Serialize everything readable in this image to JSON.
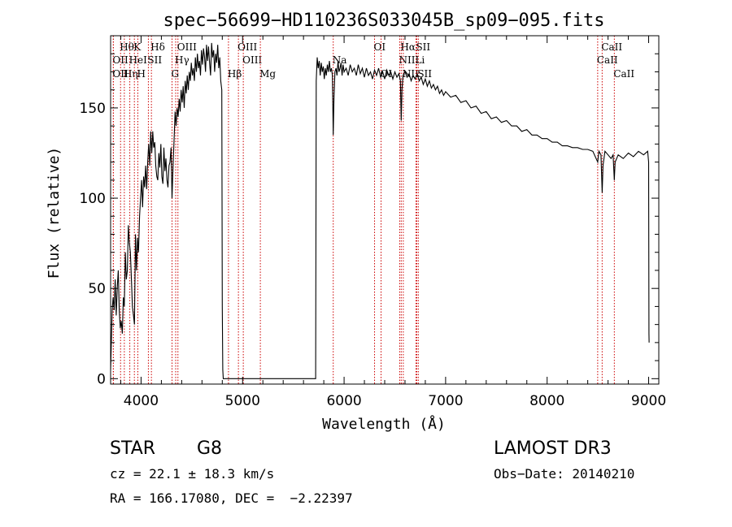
{
  "chart_data": {
    "type": "line",
    "title": "spec−56699−HD110236S033045B_sp09−095.fits",
    "xlabel": "Wavelength (Å)",
    "ylabel": "Flux (relative)",
    "xlim": [
      3700,
      9100
    ],
    "ylim": [
      -3,
      190
    ],
    "xticks": [
      4000,
      5000,
      6000,
      7000,
      8000,
      9000
    ],
    "yticks": [
      0,
      50,
      100,
      150
    ],
    "grid": false,
    "series": [
      {
        "points": [
          [
            3700,
            5
          ],
          [
            3705,
            15
          ],
          [
            3715,
            38
          ],
          [
            3725,
            45
          ],
          [
            3735,
            38
          ],
          [
            3745,
            55
          ],
          [
            3755,
            35
          ],
          [
            3765,
            50
          ],
          [
            3775,
            60
          ],
          [
            3785,
            38
          ],
          [
            3795,
            28
          ],
          [
            3805,
            32
          ],
          [
            3815,
            25
          ],
          [
            3825,
            45
          ],
          [
            3835,
            40
          ],
          [
            3845,
            70
          ],
          [
            3855,
            55
          ],
          [
            3865,
            60
          ],
          [
            3875,
            85
          ],
          [
            3885,
            75
          ],
          [
            3895,
            70
          ],
          [
            3905,
            55
          ],
          [
            3915,
            40
          ],
          [
            3925,
            35
          ],
          [
            3935,
            30
          ],
          [
            3945,
            80
          ],
          [
            3955,
            60
          ],
          [
            3965,
            78
          ],
          [
            3975,
            70
          ],
          [
            3985,
            90
          ],
          [
            3995,
            100
          ],
          [
            4005,
            110
          ],
          [
            4015,
            95
          ],
          [
            4025,
            112
          ],
          [
            4035,
            106
          ],
          [
            4045,
            118
          ],
          [
            4055,
            105
          ],
          [
            4065,
            120
          ],
          [
            4075,
            130
          ],
          [
            4085,
            118
          ],
          [
            4095,
            137
          ],
          [
            4105,
            125
          ],
          [
            4115,
            137
          ],
          [
            4125,
            128
          ],
          [
            4135,
            131
          ],
          [
            4145,
            118
          ],
          [
            4155,
            112
          ],
          [
            4165,
            110
          ],
          [
            4175,
            125
          ],
          [
            4185,
            117
          ],
          [
            4195,
            130
          ],
          [
            4205,
            112
          ],
          [
            4215,
            108
          ],
          [
            4225,
            128
          ],
          [
            4235,
            115
          ],
          [
            4245,
            122
          ],
          [
            4255,
            110
          ],
          [
            4265,
            106
          ],
          [
            4275,
            118
          ],
          [
            4285,
            120
          ],
          [
            4295,
            128
          ],
          [
            4305,
            100
          ],
          [
            4315,
            118
          ],
          [
            4325,
            132
          ],
          [
            4335,
            148
          ],
          [
            4345,
            140
          ],
          [
            4355,
            150
          ],
          [
            4365,
            145
          ],
          [
            4375,
            155
          ],
          [
            4385,
            148
          ],
          [
            4395,
            160
          ],
          [
            4405,
            153
          ],
          [
            4415,
            162
          ],
          [
            4425,
            150
          ],
          [
            4435,
            165
          ],
          [
            4445,
            158
          ],
          [
            4455,
            168
          ],
          [
            4465,
            160
          ],
          [
            4475,
            170
          ],
          [
            4485,
            165
          ],
          [
            4495,
            175
          ],
          [
            4505,
            168
          ],
          [
            4515,
            172
          ],
          [
            4525,
            165
          ],
          [
            4535,
            178
          ],
          [
            4545,
            170
          ],
          [
            4555,
            180
          ],
          [
            4565,
            172
          ],
          [
            4575,
            176
          ],
          [
            4585,
            168
          ],
          [
            4595,
            182
          ],
          [
            4605,
            174
          ],
          [
            4615,
            183
          ],
          [
            4625,
            178
          ],
          [
            4635,
            170
          ],
          [
            4645,
            185
          ],
          [
            4655,
            176
          ],
          [
            4665,
            184
          ],
          [
            4675,
            175
          ],
          [
            4685,
            168
          ],
          [
            4695,
            186
          ],
          [
            4705,
            178
          ],
          [
            4715,
            182
          ],
          [
            4725,
            170
          ],
          [
            4735,
            180
          ],
          [
            4745,
            175
          ],
          [
            4755,
            185
          ],
          [
            4765,
            172
          ],
          [
            4775,
            178
          ],
          [
            4785,
            165
          ],
          [
            4795,
            160
          ],
          [
            4800,
            40
          ],
          [
            4805,
            5
          ],
          [
            4810,
            0
          ],
          [
            5720,
            0
          ],
          [
            5725,
            165
          ],
          [
            5735,
            178
          ],
          [
            5745,
            172
          ],
          [
            5755,
            176
          ],
          [
            5765,
            168
          ],
          [
            5775,
            175
          ],
          [
            5785,
            170
          ],
          [
            5795,
            173
          ],
          [
            5805,
            166
          ],
          [
            5815,
            172
          ],
          [
            5825,
            168
          ],
          [
            5835,
            174
          ],
          [
            5845,
            170
          ],
          [
            5855,
            176
          ],
          [
            5865,
            170
          ],
          [
            5875,
            172
          ],
          [
            5885,
            168
          ],
          [
            5893,
            135
          ],
          [
            5900,
            155
          ],
          [
            5910,
            170
          ],
          [
            5920,
            172
          ],
          [
            5930,
            168
          ],
          [
            5940,
            176
          ],
          [
            5950,
            170
          ],
          [
            5960,
            172
          ],
          [
            5970,
            175
          ],
          [
            5980,
            168
          ],
          [
            5990,
            174
          ],
          [
            6000,
            170
          ],
          [
            6020,
            172
          ],
          [
            6040,
            168
          ],
          [
            6060,
            174
          ],
          [
            6080,
            170
          ],
          [
            6100,
            172
          ],
          [
            6120,
            168
          ],
          [
            6140,
            174
          ],
          [
            6160,
            169
          ],
          [
            6180,
            172
          ],
          [
            6200,
            167
          ],
          [
            6220,
            172
          ],
          [
            6240,
            168
          ],
          [
            6260,
            170
          ],
          [
            6280,
            166
          ],
          [
            6300,
            171
          ],
          [
            6320,
            168
          ],
          [
            6340,
            172
          ],
          [
            6360,
            167
          ],
          [
            6380,
            170
          ],
          [
            6400,
            166
          ],
          [
            6420,
            171
          ],
          [
            6440,
            168
          ],
          [
            6460,
            170
          ],
          [
            6480,
            166
          ],
          [
            6500,
            170
          ],
          [
            6520,
            167
          ],
          [
            6540,
            169
          ],
          [
            6555,
            165
          ],
          [
            6563,
            143
          ],
          [
            6570,
            160
          ],
          [
            6580,
            168
          ],
          [
            6600,
            170
          ],
          [
            6620,
            167
          ],
          [
            6640,
            169
          ],
          [
            6660,
            165
          ],
          [
            6680,
            168
          ],
          [
            6700,
            166
          ],
          [
            6720,
            169
          ],
          [
            6740,
            165
          ],
          [
            6760,
            167
          ],
          [
            6780,
            163
          ],
          [
            6800,
            166
          ],
          [
            6820,
            162
          ],
          [
            6840,
            165
          ],
          [
            6860,
            161
          ],
          [
            6880,
            163
          ],
          [
            6900,
            160
          ],
          [
            6920,
            162
          ],
          [
            6940,
            158
          ],
          [
            6960,
            160
          ],
          [
            6980,
            157
          ],
          [
            7000,
            159
          ],
          [
            7050,
            156
          ],
          [
            7100,
            157
          ],
          [
            7150,
            153
          ],
          [
            7200,
            154
          ],
          [
            7250,
            150
          ],
          [
            7300,
            151
          ],
          [
            7350,
            147
          ],
          [
            7400,
            148
          ],
          [
            7450,
            144
          ],
          [
            7500,
            145
          ],
          [
            7550,
            142
          ],
          [
            7600,
            143
          ],
          [
            7650,
            140
          ],
          [
            7700,
            140
          ],
          [
            7750,
            137
          ],
          [
            7800,
            138
          ],
          [
            7850,
            135
          ],
          [
            7900,
            135
          ],
          [
            7950,
            133
          ],
          [
            8000,
            133
          ],
          [
            8050,
            131
          ],
          [
            8100,
            131
          ],
          [
            8150,
            129
          ],
          [
            8200,
            129
          ],
          [
            8250,
            128
          ],
          [
            8300,
            128
          ],
          [
            8350,
            127
          ],
          [
            8400,
            127
          ],
          [
            8450,
            126
          ],
          [
            8498,
            120
          ],
          [
            8510,
            126
          ],
          [
            8530,
            124
          ],
          [
            8542,
            103
          ],
          [
            8550,
            118
          ],
          [
            8570,
            126
          ],
          [
            8600,
            124
          ],
          [
            8630,
            122
          ],
          [
            8650,
            124
          ],
          [
            8662,
            110
          ],
          [
            8670,
            120
          ],
          [
            8700,
            124
          ],
          [
            8750,
            122
          ],
          [
            8800,
            125
          ],
          [
            8850,
            123
          ],
          [
            8900,
            126
          ],
          [
            8950,
            124
          ],
          [
            8990,
            126
          ],
          [
            9000,
            120
          ],
          [
            9003,
            25
          ],
          [
            9005,
            20
          ]
        ]
      }
    ],
    "line_markers": [
      {
        "label": "Hθ",
        "wave": 3798,
        "row": 0
      },
      {
        "label": "OII",
        "wave": 3727,
        "row": 1
      },
      {
        "label": "OIII",
        "wave": 3727,
        "row": 2
      },
      {
        "label": "Hη",
        "wave": 3835,
        "row": 2
      },
      {
        "label": "K",
        "wave": 3934,
        "row": 0
      },
      {
        "label": "HeI",
        "wave": 3889,
        "row": 1
      },
      {
        "label": "H",
        "wave": 3968,
        "row": 2
      },
      {
        "label": "Hδ",
        "wave": 4102,
        "row": 0
      },
      {
        "label": "SII",
        "wave": 4072,
        "row": 1
      },
      {
        "label": "OIII",
        "wave": 4363,
        "row": 0
      },
      {
        "label": "Hγ",
        "wave": 4341,
        "row": 1
      },
      {
        "label": "G",
        "wave": 4305,
        "row": 2
      },
      {
        "label": "Hβ",
        "wave": 4861,
        "row": 2
      },
      {
        "label": "OIII",
        "wave": 4959,
        "row": 0
      },
      {
        "label": "OIII",
        "wave": 5007,
        "row": 1
      },
      {
        "label": "Mg",
        "wave": 5175,
        "row": 2
      },
      {
        "label": "Na",
        "wave": 5893,
        "row": 1
      },
      {
        "label": "OI",
        "wave": 6300,
        "row": 0
      },
      {
        "label": "OI",
        "wave": 6364,
        "row": 2
      },
      {
        "label": "Hα",
        "wave": 6563,
        "row": 0
      },
      {
        "label": "NII",
        "wave": 6548,
        "row": 1
      },
      {
        "label": "NII",
        "wave": 6583,
        "row": 2
      },
      {
        "label": "SII",
        "wave": 6716,
        "row": 0
      },
      {
        "label": "Li",
        "wave": 6708,
        "row": 1
      },
      {
        "label": "SII",
        "wave": 6731,
        "row": 2
      },
      {
        "label": "CaII",
        "wave": 8542,
        "row": 0
      },
      {
        "label": "CaII",
        "wave": 8498,
        "row": 1
      },
      {
        "label": "CaII",
        "wave": 8662,
        "row": 2
      }
    ],
    "line_color": "#cc0000"
  },
  "info": {
    "class": "STAR",
    "subclass": "G8",
    "survey": "LAMOST DR3",
    "cz": "cz = 22.1 ± 18.3 km/s",
    "obs_date": "Obs−Date: 20140210",
    "radec": "RA = 166.17080, DEC =  −2.22397"
  }
}
